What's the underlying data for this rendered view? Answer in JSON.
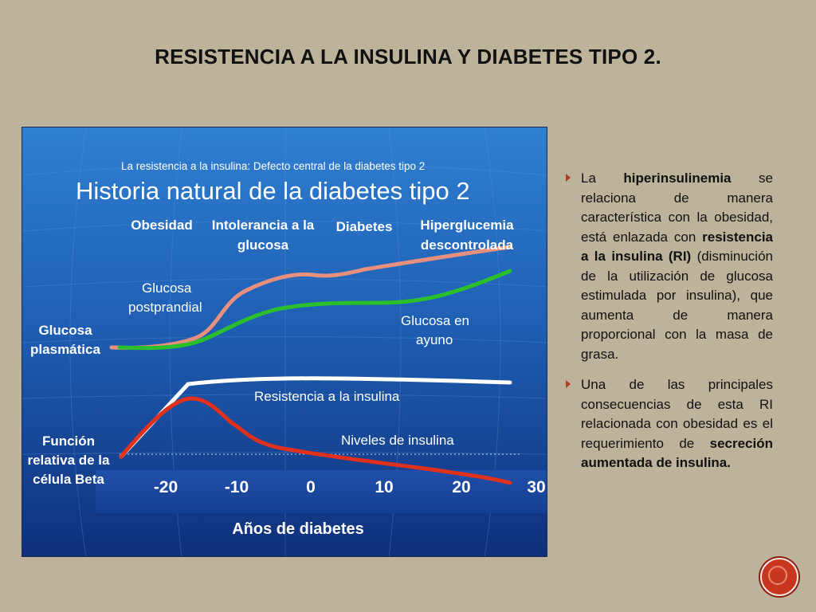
{
  "slide": {
    "title": "RESISTENCIA A LA INSULINA Y DIABETES TIPO 2."
  },
  "figure": {
    "subtitle": "La resistencia a la insulina: Defecto central de la diabetes tipo 2",
    "title": "Historia natural de la diabetes tipo 2",
    "stages": [
      {
        "line1": "Obesidad",
        "line2": ""
      },
      {
        "line1": "Intolerancia a la",
        "line2": "glucosa"
      },
      {
        "line1": "Diabetes",
        "line2": ""
      },
      {
        "line1": "Hiperglucemia",
        "line2": "descontrolada"
      }
    ],
    "left_labels": {
      "glucose_line1": "Glucosa",
      "glucose_line2": "plasmática",
      "beta_line1": "Función",
      "beta_line2": "relativa de la",
      "beta_line3": "célula Beta"
    },
    "series_labels": {
      "postprandial_line1": "Glucosa",
      "postprandial_line2": "postprandial",
      "fasting_line1": "Glucosa en",
      "fasting_line2": "ayuno",
      "resistance": "Resistencia a la insulina",
      "insulin": "Niveles de insulina"
    },
    "axis": {
      "ticks": [
        "-20",
        "-10",
        "0",
        "10",
        "20",
        "30"
      ],
      "label": "Años de diabetes"
    },
    "colors": {
      "postprandial": "#e8907e",
      "fasting": "#2bc02b",
      "resistance": "#ffffff",
      "insulin": "#e0301e"
    }
  },
  "bullets": [
    {
      "parts": [
        {
          "t": "La ",
          "b": false
        },
        {
          "t": "hiperinsulinemia",
          "b": true
        },
        {
          "t": " se relaciona de manera característica con la obesidad, está enlazada con ",
          "b": false
        },
        {
          "t": "resistencia a la insulina (RI)",
          "b": true
        },
        {
          "t": " (disminución de la utilización de glucosa estimulada por insulina), que aumenta de manera proporcional con la masa de grasa.",
          "b": false
        }
      ]
    },
    {
      "parts": [
        {
          "t": "Una de las principales consecuencias de esta RI relacionada con obesidad es el requerimiento de ",
          "b": false
        },
        {
          "t": "secreción aumentada de insulina.",
          "b": true
        }
      ]
    }
  ],
  "nav": {
    "icon": "next-slide-icon"
  }
}
